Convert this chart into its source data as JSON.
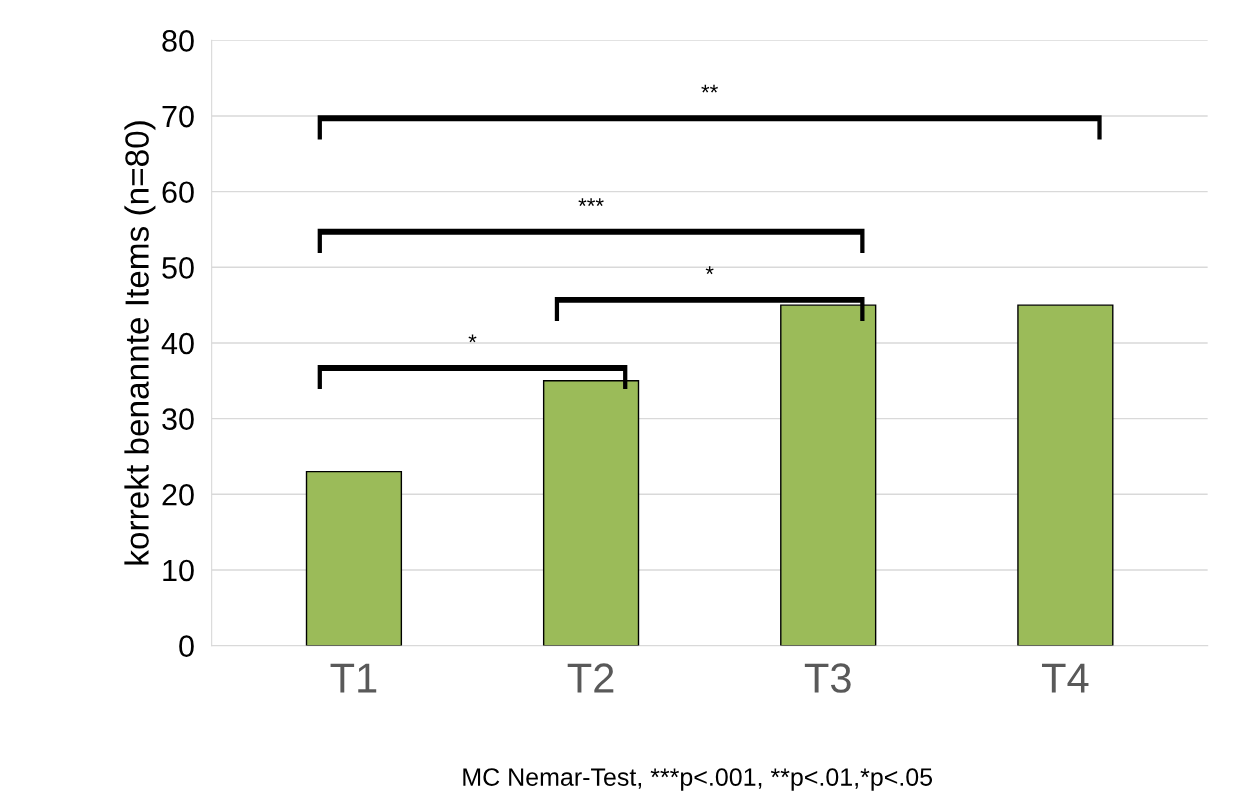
{
  "chart_data": {
    "type": "bar",
    "ylabel": "korrekt benannte Items (n=80)",
    "categories": [
      "T1",
      "T2",
      "T3",
      "T4"
    ],
    "values": [
      23,
      35,
      45,
      45
    ],
    "color": "#9bbb59",
    "ylim": [
      0,
      80
    ],
    "yticks": [
      0,
      10,
      20,
      30,
      40,
      50,
      60,
      70,
      80
    ],
    "grid": "y",
    "annotations": [
      "*",
      "*",
      "***",
      "**",
      "MC Nemar-Test, ***p<.001, **p<.01,*p<.05"
    ]
  }
}
